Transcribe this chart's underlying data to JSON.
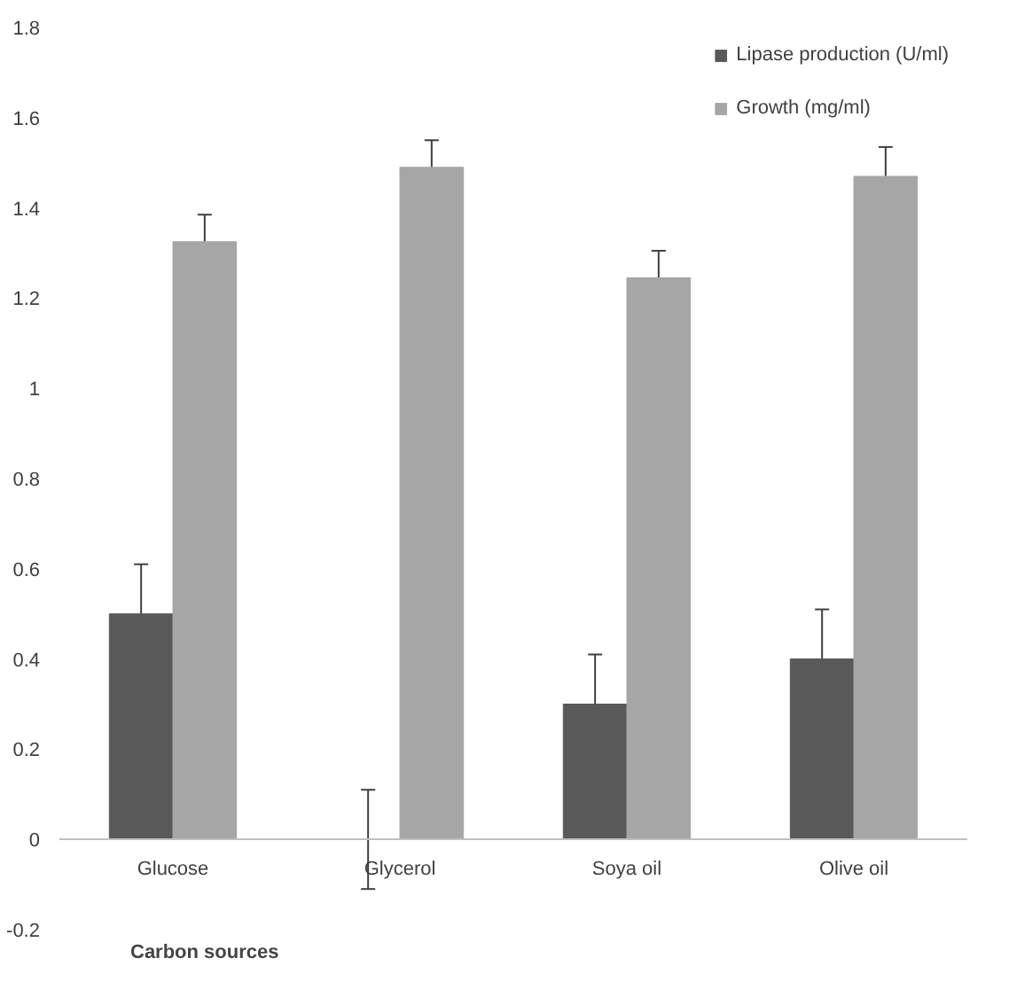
{
  "chart_data": {
    "type": "bar",
    "xlabel": "Carbon sources",
    "categories": [
      "Glucose",
      "Glycerol",
      "Soya oil",
      "Olive oil"
    ],
    "series": [
      {
        "name": "Lipase production (U/ml)",
        "color": "#595959",
        "values": [
          0.5,
          0,
          0.3,
          0.4
        ],
        "errors": [
          0.11,
          0.11,
          0.11,
          0.11
        ]
      },
      {
        "name": "Growth (mg/ml)",
        "color": "#a6a6a6",
        "values": [
          1.325,
          1.49,
          1.245,
          1.47
        ],
        "errors": [
          0.06,
          0.06,
          0.06,
          0.065
        ]
      }
    ],
    "ylim": [
      -0.2,
      1.8
    ],
    "yticks": [
      {
        "value": -0.2,
        "label": "-0.2"
      },
      0,
      {
        "value": 0.2,
        "label": "0.2"
      },
      {
        "value": 0.4,
        "label": "0.4"
      },
      {
        "value": 0.6,
        "label": "0.6"
      },
      {
        "value": 0.8,
        "label": "0.8"
      },
      1,
      {
        "value": 1.2,
        "label": "1.2"
      },
      {
        "value": 1.4,
        "label": "1.4"
      },
      {
        "value": 1.6,
        "label": "1.6"
      },
      {
        "value": 1.8,
        "label": "1.8"
      }
    ],
    "grid": false,
    "legend": "top right"
  }
}
